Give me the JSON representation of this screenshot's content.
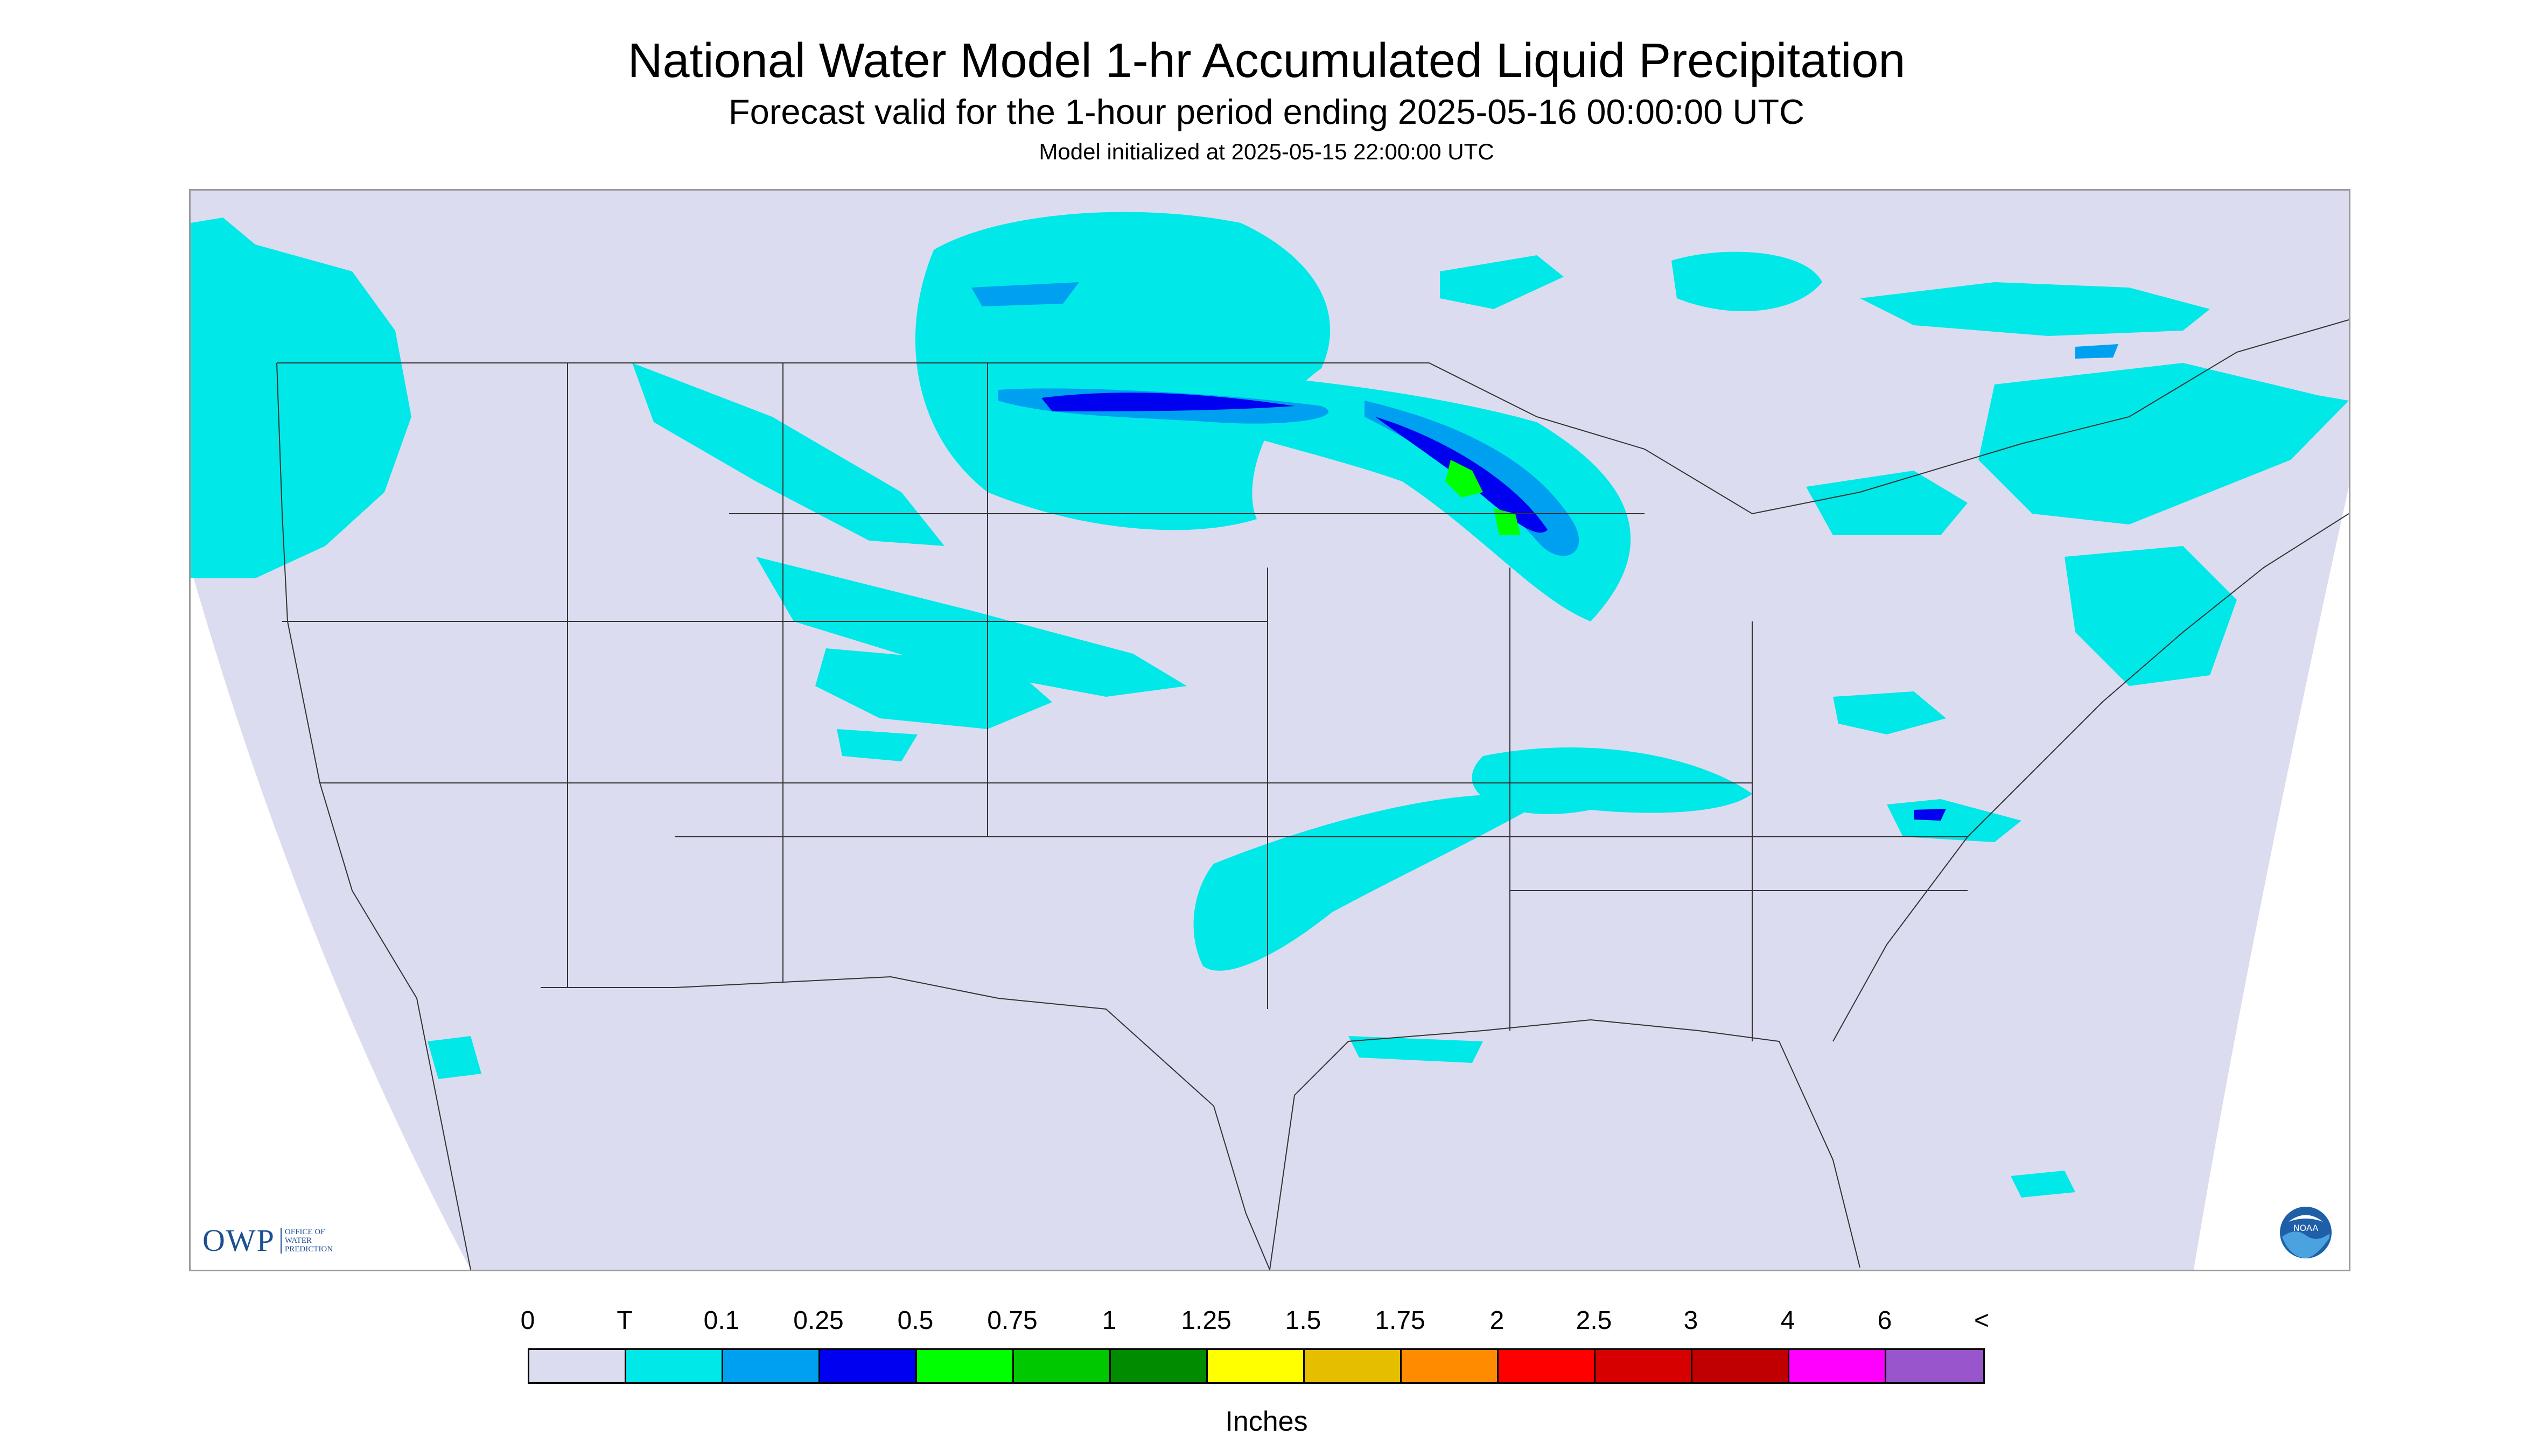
{
  "header": {
    "title": "National Water Model 1-hr Accumulated Liquid Precipitation",
    "subtitle": "Forecast valid for the 1-hour period ending 2025-05-16 00:00:00 UTC",
    "init": "Model initialized at 2025-05-15 22:00:00 UTC"
  },
  "logos": {
    "owp_text": "OWP",
    "owp_sub": [
      "OFFICE OF",
      "WATER",
      "PREDICTION"
    ],
    "noaa_text": "NOAA"
  },
  "legend": {
    "labels": [
      "0",
      "T",
      "0.1",
      "0.25",
      "0.5",
      "0.75",
      "1",
      "1.25",
      "1.5",
      "1.75",
      "2",
      "2.5",
      "3",
      "4",
      "6",
      "<"
    ],
    "colors": [
      "#dcdcf0",
      "#00e8e8",
      "#00a0f0",
      "#0000f0",
      "#00ff00",
      "#00c800",
      "#008c00",
      "#ffff00",
      "#e6be00",
      "#ff8c00",
      "#ff0000",
      "#d60000",
      "#c00000",
      "#ff00ff",
      "#9955cc"
    ],
    "units": "Inches"
  },
  "colors": {
    "background_domain": "#dcdcf0",
    "trace": "#00e8e8",
    "light": "#00a0f0",
    "moderate": "#0000f0",
    "heavy": "#00ff00",
    "boundary": "#333333"
  }
}
